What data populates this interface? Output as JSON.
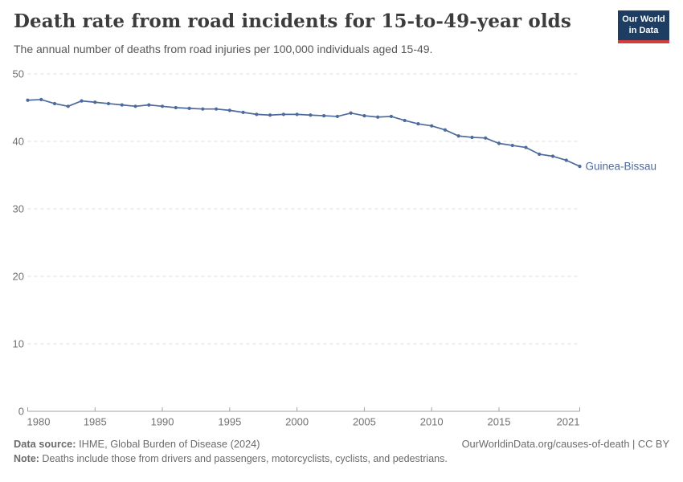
{
  "logo": {
    "line1": "Our World",
    "line2": "in Data"
  },
  "chart_data": {
    "type": "line",
    "title": "Death rate from road incidents for 15-to-49-year olds",
    "subtitle": "The annual number of deaths from road injuries per 100,000 individuals aged 15-49.",
    "xlabel": "",
    "ylabel": "",
    "xlim": [
      1980,
      2021
    ],
    "ylim": [
      0,
      50
    ],
    "x_ticks": [
      1980,
      1985,
      1990,
      1995,
      2000,
      2005,
      2010,
      2015,
      2021
    ],
    "y_ticks": [
      0,
      10,
      20,
      30,
      40,
      50
    ],
    "grid": "horizontal-dashed",
    "legend_position": "end-of-line-label",
    "series": [
      {
        "name": "Guinea-Bissau",
        "color": "#4C6A9C",
        "x": [
          1980,
          1981,
          1982,
          1983,
          1984,
          1985,
          1986,
          1987,
          1988,
          1989,
          1990,
          1991,
          1992,
          1993,
          1994,
          1995,
          1996,
          1997,
          1998,
          1999,
          2000,
          2001,
          2002,
          2003,
          2004,
          2005,
          2006,
          2007,
          2008,
          2009,
          2010,
          2011,
          2012,
          2013,
          2014,
          2015,
          2016,
          2017,
          2018,
          2019,
          2020,
          2021
        ],
        "values": [
          46.1,
          46.2,
          45.6,
          45.2,
          46.0,
          45.8,
          45.6,
          45.4,
          45.2,
          45.4,
          45.2,
          45.0,
          44.9,
          44.8,
          44.8,
          44.6,
          44.3,
          44.0,
          43.9,
          44.0,
          44.0,
          43.9,
          43.8,
          43.7,
          44.2,
          43.8,
          43.6,
          43.7,
          43.1,
          42.6,
          42.3,
          41.7,
          40.8,
          40.6,
          40.5,
          39.7,
          39.4,
          39.1,
          38.1,
          37.8,
          37.2,
          36.3
        ]
      }
    ]
  },
  "footer": {
    "data_source_label": "Data source:",
    "data_source_text": " IHME, Global Burden of Disease (2024)",
    "citation": "OurWorldinData.org/causes-of-death | CC BY",
    "note_label": "Note:",
    "note_text": " Deaths include those from drivers and passengers, motorcyclists, cyclists, and pedestrians."
  },
  "colors": {
    "line": "#4C6A9C",
    "grid": "#dcdcdc",
    "axis": "#a3a3a3",
    "tick-label": "#717171",
    "title": "#3c3c3c",
    "subtitle": "#575757",
    "footer": "#6b6b6b",
    "logo-bg": "#1d3d63",
    "logo-stripe": "#d13d3d"
  }
}
